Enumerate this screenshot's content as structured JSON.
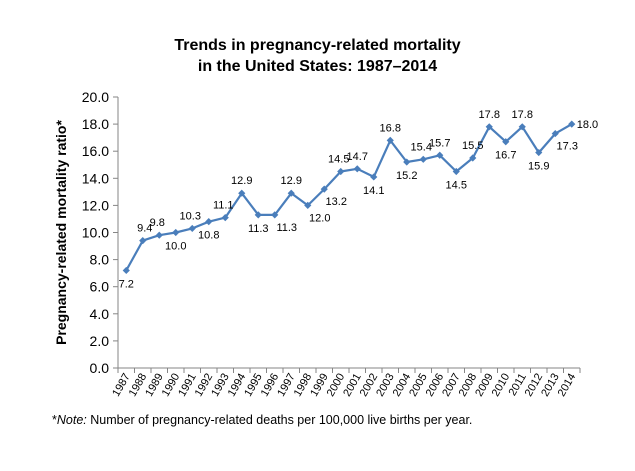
{
  "chart_data": {
    "type": "line",
    "title": "Trends in pregnancy-related mortality",
    "title_line2": "in the United States: 1987–2014",
    "ylabel": "Pregnancy-related mortality ratio*",
    "xlabel": "",
    "ylim": [
      0,
      20
    ],
    "ytick_step": 2,
    "ytick_labels": [
      "0.0",
      "2.0",
      "4.0",
      "6.0",
      "8.0",
      "10.0",
      "12.0",
      "14.0",
      "16.0",
      "18.0",
      "20.0"
    ],
    "grid": false,
    "legend": "none",
    "x": [
      "1987",
      "1988",
      "1989",
      "1990",
      "1991",
      "1992",
      "1993",
      "1994",
      "1995",
      "1996",
      "1997",
      "1998",
      "1999",
      "2000",
      "2001",
      "2002",
      "2003",
      "2004",
      "2005",
      "2006",
      "2007",
      "2008",
      "2009",
      "2010",
      "2011",
      "2012",
      "2013",
      "2014"
    ],
    "series": [
      {
        "values": [
          7.2,
          9.4,
          9.8,
          10.0,
          10.3,
          10.8,
          11.1,
          12.9,
          11.3,
          11.3,
          12.9,
          12.0,
          13.2,
          14.5,
          14.7,
          14.1,
          16.8,
          15.2,
          15.4,
          15.7,
          14.5,
          15.5,
          17.8,
          16.7,
          17.8,
          15.9,
          17.3,
          18.0
        ],
        "color": "#4a7ebb"
      }
    ],
    "data_labels": [
      {
        "index": 0,
        "text": "7.2",
        "pos": "below"
      },
      {
        "index": 1,
        "text": "9.4",
        "pos": "above-right"
      },
      {
        "index": 2,
        "text": "9.8",
        "pos": "above-left"
      },
      {
        "index": 3,
        "text": "10.0",
        "pos": "below"
      },
      {
        "index": 4,
        "text": "10.3",
        "pos": "above-left"
      },
      {
        "index": 5,
        "text": "10.8",
        "pos": "below"
      },
      {
        "index": 6,
        "text": "11.1",
        "pos": "above-left"
      },
      {
        "index": 7,
        "text": "12.9",
        "pos": "above"
      },
      {
        "index": 8,
        "text": "11.3",
        "pos": "below"
      },
      {
        "index": 9,
        "text": "11.3",
        "pos": "below-right"
      },
      {
        "index": 10,
        "text": "12.9",
        "pos": "above"
      },
      {
        "index": 11,
        "text": "12.0",
        "pos": "below-right"
      },
      {
        "index": 12,
        "text": "13.2",
        "pos": "below-right"
      },
      {
        "index": 13,
        "text": "14.5",
        "pos": "above-left"
      },
      {
        "index": 14,
        "text": "14.7",
        "pos": "above"
      },
      {
        "index": 15,
        "text": "14.1",
        "pos": "below"
      },
      {
        "index": 16,
        "text": "16.8",
        "pos": "above"
      },
      {
        "index": 17,
        "text": "15.2",
        "pos": "below"
      },
      {
        "index": 18,
        "text": "15.4",
        "pos": "above-left"
      },
      {
        "index": 19,
        "text": "15.7",
        "pos": "above"
      },
      {
        "index": 20,
        "text": "14.5",
        "pos": "below"
      },
      {
        "index": 21,
        "text": "15.5",
        "pos": "above"
      },
      {
        "index": 22,
        "text": "17.8",
        "pos": "above"
      },
      {
        "index": 23,
        "text": "16.7",
        "pos": "below"
      },
      {
        "index": 24,
        "text": "17.8",
        "pos": "above"
      },
      {
        "index": 25,
        "text": "15.9",
        "pos": "below"
      },
      {
        "index": 26,
        "text": "17.3",
        "pos": "below-right"
      },
      {
        "index": 27,
        "text": "18.0",
        "pos": "right"
      }
    ]
  },
  "note": {
    "prefix": "*",
    "label": "Note:",
    "text": " Number of pregnancy-related deaths per 100,000 live births per year."
  }
}
